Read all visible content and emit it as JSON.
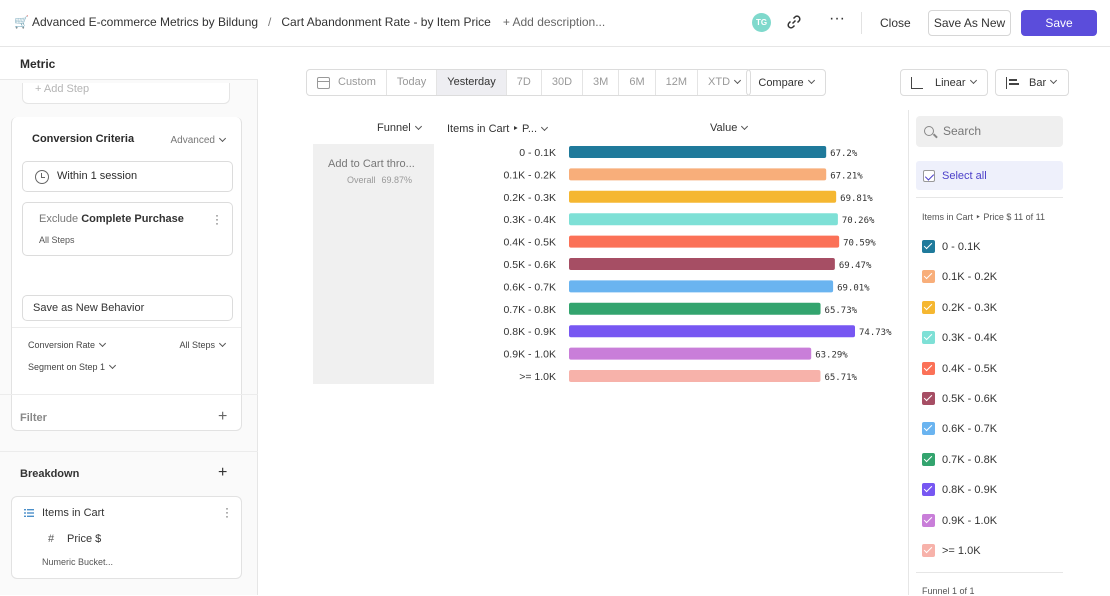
{
  "header": {
    "cart_icon": "🛒",
    "project": "Advanced E-commerce Metrics by Bildung",
    "separator": "/",
    "report_title": "Cart Abandonment Rate - by Item Price",
    "add_description": "+ Add description...",
    "avatar_initials": "TG",
    "close_label": "Close",
    "save_as_new_label": "Save As New",
    "save_label": "Save",
    "accent_color": "#5b4ddb"
  },
  "sidebar": {
    "metric_label": "Metric",
    "add_step": "+ Add Step",
    "conversion_criteria": "Conversion Criteria",
    "advanced_label": "Advanced",
    "within_session": "Within 1 session",
    "exclude_prefix": "Exclude",
    "exclude_event": "Complete Purchase",
    "exclude_steps": "All Steps",
    "save_new_behavior": "Save as New Behavior",
    "conversion_rate": "Conversion Rate",
    "all_steps": "All Steps",
    "segment_on_step": "Segment on Step 1",
    "filter_label": "Filter",
    "breakdown_label": "Breakdown",
    "breakdown_property": "Items in Cart",
    "breakdown_sub_property": "Price $",
    "breakdown_bucket": "Numeric Bucket..."
  },
  "toolbar": {
    "date_ranges": [
      "Custom",
      "Today",
      "Yesterday",
      "7D",
      "30D",
      "3M",
      "6M",
      "12M",
      "XTD"
    ],
    "active_range": "Yesterday",
    "compare_label": "Compare",
    "scale_label": "Linear",
    "chart_type_label": "Bar"
  },
  "table": {
    "col_funnel": "Funnel",
    "col_breakdown": "Items in Cart ‣ P...",
    "col_value": "Value",
    "funnel_name": "Add to Cart thro...",
    "overall_label": "Overall",
    "overall_value": "69.87%"
  },
  "chart_data": {
    "type": "bar",
    "orientation": "horizontal",
    "categories": [
      "0 - 0.1K",
      "0.1K - 0.2K",
      "0.2K - 0.3K",
      "0.3K - 0.4K",
      "0.4K - 0.5K",
      "0.5K - 0.6K",
      "0.6K - 0.7K",
      "0.7K - 0.8K",
      "0.8K - 0.9K",
      "0.9K - 1.0K",
      ">= 1.0K"
    ],
    "values": [
      67.2,
      67.21,
      69.81,
      70.26,
      70.59,
      69.47,
      69.01,
      65.73,
      74.73,
      63.29,
      65.71
    ],
    "value_labels": [
      "67.2%",
      "67.21%",
      "69.81%",
      "70.26%",
      "70.59%",
      "69.47%",
      "69.01%",
      "65.73%",
      "74.73%",
      "63.29%",
      "65.71%"
    ],
    "colors": [
      "#1f7a9b",
      "#f8ae7a",
      "#f5b731",
      "#7ee0d6",
      "#fb7157",
      "#a64e64",
      "#6ab4f0",
      "#33a46e",
      "#7757f2",
      "#c97ed9",
      "#f7b2aa"
    ],
    "xlabel": "",
    "ylabel": ""
  },
  "legend": {
    "search_placeholder": "Search",
    "select_all": "Select all",
    "group_title": "Items in Cart ‣ Price $ 11 of 11",
    "footer": "Funnel 1 of 1"
  }
}
